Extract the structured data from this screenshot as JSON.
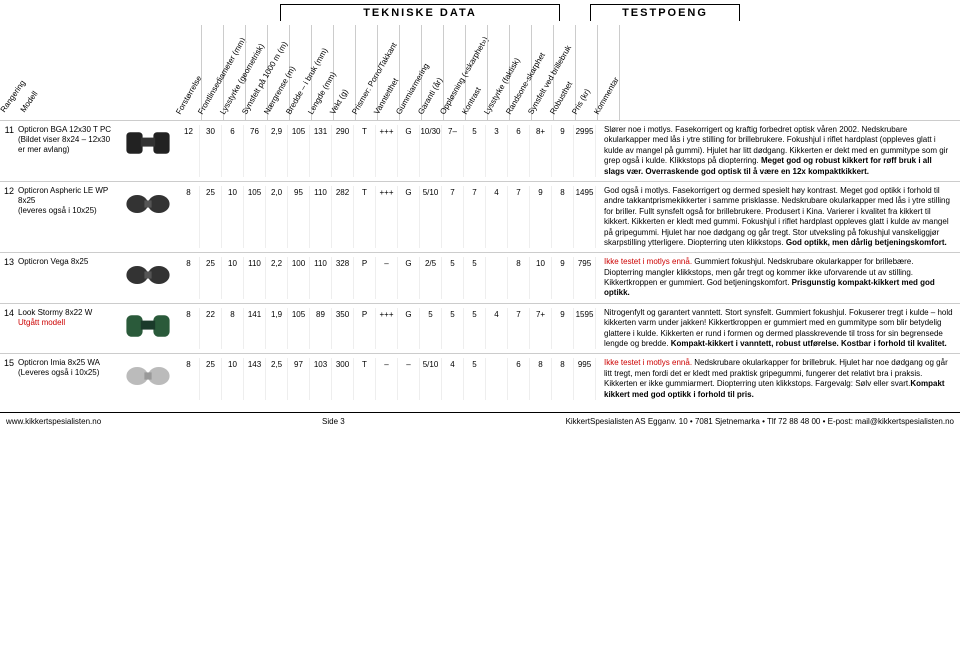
{
  "section_titles": {
    "tech": "TEKNISKE DATA",
    "score": "TESTPOENG"
  },
  "left_head": [
    "Rangering",
    "Modell"
  ],
  "col_heads": [
    "Forstørrelse",
    "Frontlinsediameter (mm)",
    "Lysstyrke (geometrisk)",
    "Synsfelt på 1000 m (m)",
    "Nærgrense (m)",
    "Bredde – i bruk (mm)",
    "Lengde (mm)",
    "Vekt (g)",
    "Prismer: Porro/Takkant",
    "Vanntetthet",
    "Gummiarmering",
    "Garanti (år)",
    "Oppløsning («skarphet»)",
    "Kontrast",
    "Lysstyrke (faktisk)",
    "Randsone-skarphet",
    "Synsfelt ved brillebruk",
    "Robusthet",
    "Pris (kr)",
    "Kommentar"
  ],
  "rows": [
    {
      "rank": "11",
      "model": "Opticron BGA 12x30 T PC",
      "sub": "(Bildet viser 8x24 – 12x30 er mer avlang)",
      "sub_red": false,
      "thumb": "roof",
      "cells": [
        "12",
        "30",
        "6",
        "76",
        "2,9",
        "105",
        "131",
        "290",
        "T",
        "+++",
        "G",
        "10/30",
        "7–",
        "5",
        "3",
        "6",
        "8+",
        "9",
        "2995"
      ],
      "comment": "Slører noe i motlys. Fasekorrigert og kraftig forbedret optisk våren 2002. Nedskrubare okularkapper med lås i ytre stilling for brillebrukere. Fokushjul i riflet hardplast (oppleves glatt i kulde av mangel på gummi). Hjulet har litt dødgang. Kikkerten er dekt med en gummitype som gir grep også i kulde. Klikkstops på diopterring. ",
      "bold": "Meget god og robust kikkert for røff bruk i all slags vær. Overraskende god optisk til å være en 12x kompaktkikkert."
    },
    {
      "rank": "12",
      "model": "Opticron Aspheric LE WP 8x25",
      "sub": "(leveres også i 10x25)",
      "sub_red": false,
      "thumb": "fold",
      "cells": [
        "8",
        "25",
        "10",
        "105",
        "2,0",
        "95",
        "110",
        "282",
        "T",
        "+++",
        "G",
        "5/10",
        "7",
        "7",
        "4",
        "7",
        "9",
        "8",
        "1495"
      ],
      "comment": "God også i motlys. Fasekorrigert og dermed spesielt høy kontrast. Meget god optikk i forhold til andre takkantprismekikkerter i samme prisklasse. Nedskrubare okularkapper med lås i ytre stilling for briller. Fullt synsfelt også for brillebrukere. Produsert i Kina. Varierer i kvalitet fra kikkert til kikkert. Kikkerten er kledt med gummi. Fokushjul i riflet hardplast oppleves glatt i kulde av mangel på gripegummi. Hjulet har noe dødgang og går tregt. Stor utveksling på fokushjul vanskeliggjør skarpstilling ytterligere. Diopterring uten klikkstops. ",
      "bold": "God optikk, men dårlig betjeningskomfort."
    },
    {
      "rank": "13",
      "model": "Opticron Vega 8x25",
      "sub": "",
      "sub_red": false,
      "thumb": "fold",
      "cells": [
        "8",
        "25",
        "10",
        "110",
        "2,2",
        "100",
        "110",
        "328",
        "P",
        "–",
        "G",
        "2/5",
        "5",
        "5",
        "",
        "8",
        "10",
        "9",
        "795"
      ],
      "comment_red": "Ikke testet i motlys ennå. ",
      "comment": "Gummiert fokushjul. Nedskrubare okular­kapper for brillebære. Diopterring mangler klikkstops, men går tregt og kommer ikke uforvarende ut av stilling. Kikkertkroppen er gummiert. God betjeningskomfort. ",
      "bold": "Prisgunstig kompakt-kikkert med god optikk."
    },
    {
      "rank": "14",
      "model": "Look Stormy 8x22 W",
      "sub": "Utgått modell",
      "sub_red": true,
      "thumb": "roof-green",
      "cells": [
        "8",
        "22",
        "8",
        "141",
        "1,9",
        "105",
        "89",
        "350",
        "P",
        "+++",
        "G",
        "5",
        "5",
        "5",
        "4",
        "7",
        "7+",
        "9",
        "1595"
      ],
      "comment": "Nitrogenfylt og garantert vanntett. Stort synsfelt. Gummiert fokus­hjul. Fokuserer tregt i kulde – hold kikkerten varm under jakken! Kikkertkroppen er gummiert med en gummitype som blir betydelig glattere i kulde. Kikkerten er rund i formen og dermed plasskrevende til tross for sin begrensede lengde og bredde. ",
      "bold": "Kompakt-kikkert i vanntett, robust utførelse. Kostbar i forhold til kvalitet."
    },
    {
      "rank": "15",
      "model": "Opticron Imia 8x25 WA",
      "sub": "(Leveres også i 10x25)",
      "sub_red": false,
      "thumb": "fold-silver",
      "cells": [
        "8",
        "25",
        "10",
        "143",
        "2,5",
        "97",
        "103",
        "300",
        "T",
        "–",
        "–",
        "5/10",
        "4",
        "5",
        "",
        "6",
        "8",
        "8",
        "995"
      ],
      "comment_red": "Ikke testet i motlys ennå. ",
      "comment": "Nedskrubare okularkapper for brillebruk. Hjulet har noe dødgang og går litt tregt, men fordi det er kledt med praktisk gripegummi, fungerer det relativt bra i praksis. Kikkerten er ikke gummiarmert. Diopterring uten klikkstops. Fargevalg: Sølv eller svart.",
      "bold": "Kompakt kikkert med god optikk i forhold til pris."
    }
  ],
  "footer": {
    "left": "www.kikkertspesialisten.no",
    "mid": "Side 3",
    "right": "KikkertSpesialisten AS  Egganv. 10 • 7081 Sjetnemarka • Tlf 72 88 48 00 • E-post: mail@kikkertspesialisten.no"
  }
}
